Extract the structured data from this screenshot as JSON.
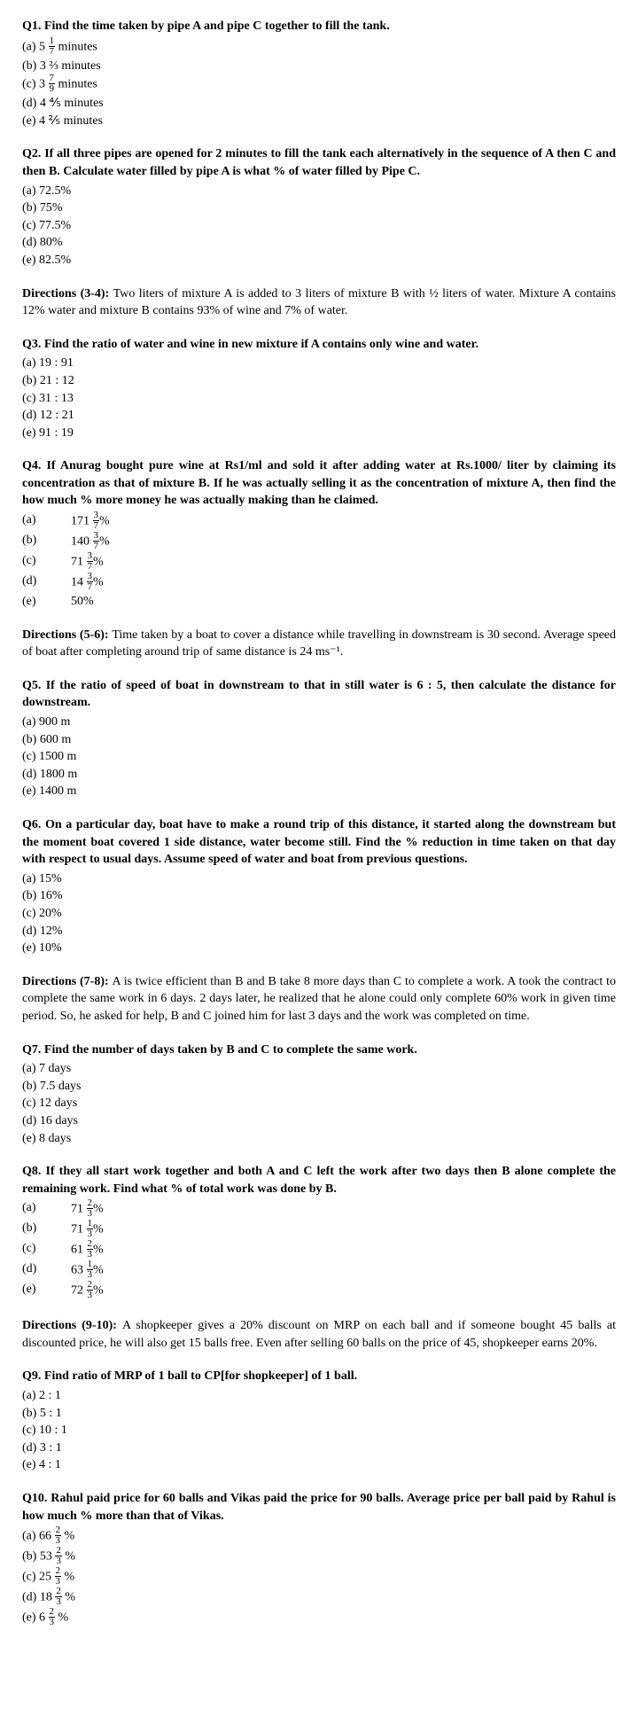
{
  "q1": {
    "text": "Q1.  Find the time taken by pipe A and pipe C together to fill the tank.",
    "a_pre": "(a) 5 ",
    "a_num": "1",
    "a_den": "7",
    "a_post": " minutes",
    "b": "(b) 3 ⅔ minutes",
    "c_pre": "(c) 3 ",
    "c_num": "7",
    "c_den": "9",
    "c_post": " minutes",
    "d": "(d) 4 ⅘ minutes",
    "e": "(e) 4 ⅖ minutes"
  },
  "q2": {
    "text": "Q2. If all three pipes are opened for 2 minutes to fill the tank each alternatively in the sequence of A then C and then B. Calculate water filled by pipe A is what % of water filled by Pipe C.",
    "a": "(a) 72.5%",
    "b": "(b) 75%",
    "c": "(c) 77.5%",
    "d": "(d) 80%",
    "e": "(e) 82.5%"
  },
  "d34": {
    "label": "Directions (3-4): ",
    "text": "Two liters of mixture A is added to 3 liters of mixture B with ½ liters of water. Mixture A contains 12% water and mixture B contains 93% of wine and 7% of water."
  },
  "q3": {
    "text": "Q3. Find the ratio of water and wine in new mixture if A contains only wine and water.",
    "a": "(a) 19 : 91",
    "b": "(b) 21 : 12",
    "c": "(c) 31 : 13",
    "d": "(d) 12 : 21",
    "e": "(e) 91 : 19"
  },
  "q4": {
    "text": "Q4. If Anurag bought pure wine at Rs1/ml and sold it after adding water at Rs.1000/ liter by claiming its concentration as that of mixture B. If he was actually selling it as the concentration of mixture A, then find the how much % more money he was actually making than he claimed.",
    "a_lbl": "(a)",
    "a_pre": "171 ",
    "a_num": "3",
    "a_den": "7",
    "a_post": "%",
    "b_lbl": "(b)",
    "b_pre": "140 ",
    "b_num": "3",
    "b_den": "7",
    "b_post": "%",
    "c_lbl": "(c)",
    "c_pre": "71 ",
    "c_num": "3",
    "c_den": "7",
    "c_post": "%",
    "d_lbl": "(d)",
    "d_pre": "14 ",
    "d_num": "3",
    "d_den": "7",
    "d_post": "%",
    "e_lbl": "(e)",
    "e_val": "50%"
  },
  "d56": {
    "label": "Directions (5-6): ",
    "text": "Time taken by a boat to cover a distance while travelling in downstream is 30 second. Average speed of boat after completing around trip of same distance is 24 ms⁻¹."
  },
  "q5": {
    "text": "Q5. If the ratio of speed of boat in downstream to that in still water is 6 : 5, then calculate the distance for downstream.",
    "a": "(a) 900 m",
    "b": "(b) 600 m",
    "c": "(c) 1500 m",
    "d": "(d) 1800 m",
    "e": "(e) 1400 m"
  },
  "q6": {
    "text": "Q6.  On a particular day, boat have to make a round trip of this distance, it started along the downstream but the moment boat covered 1 side distance, water become still. Find the % reduction in time taken on that day with respect to usual days. Assume speed of water and boat from previous questions.",
    "a": "(a) 15%",
    "b": "(b) 16%",
    "c": "(c) 20%",
    "d": "(d) 12%",
    "e": "(e) 10%"
  },
  "d78": {
    "label": "Directions (7-8): ",
    "text": "A is twice efficient than B and B take 8 more days than C to complete a work. A took the contract to complete the same work in 6 days. 2 days later, he realized that he alone could only complete 60% work in given time period. So, he asked for help, B and C joined him for last 3 days and the work was completed on time."
  },
  "q7": {
    "text": "Q7. Find the number of days taken by B and C to complete the same work.",
    "a": "(a) 7 days",
    "b": "(b) 7.5 days",
    "c": "(c) 12 days",
    "d": "(d) 16 days",
    "e": "(e) 8 days"
  },
  "q8": {
    "text": "Q8. If they all start work together and both A and C left the work after two days then B alone complete the remaining work. Find what % of total work was done by B.",
    "a_lbl": "(a)",
    "a_pre": "71 ",
    "a_num": "2",
    "a_den": "3",
    "a_post": "%",
    "b_lbl": "(b)",
    "b_pre": "71 ",
    "b_num": "1",
    "b_den": "3",
    "b_post": "%",
    "c_lbl": "(c)",
    "c_pre": "61 ",
    "c_num": "2",
    "c_den": "3",
    "c_post": "%",
    "d_lbl": "(d)",
    "d_pre": "63 ",
    "d_num": "1",
    "d_den": "3",
    "d_post": "%",
    "e_lbl": "(e)",
    "e_pre": "72 ",
    "e_num": "2",
    "e_den": "3",
    "e_post": "%"
  },
  "d910": {
    "label": "Directions (9-10): ",
    "text": "A shopkeeper gives a 20% discount on MRP on each ball and if someone bought 45 balls at discounted price, he will also get 15 balls free. Even after selling 60 balls on the price of 45, shopkeeper earns 20%."
  },
  "q9": {
    "text": "Q9. Find ratio of MRP of 1 ball to CP[for shopkeeper] of 1 ball.",
    "a": "(a) 2 : 1",
    "b": "(b) 5 : 1",
    "c": "(c) 10 : 1",
    "d": "(d) 3 : 1",
    "e": "(e) 4 : 1"
  },
  "q10": {
    "text": "Q10. Rahul paid price for 60 balls and Vikas paid the price for 90 balls. Average price per ball paid by Rahul is how much % more than that of Vikas.",
    "a_pre": "(a) 66 ",
    "a_num": "2",
    "a_den": "3",
    "a_post": " %",
    "b_pre": "(b) 53 ",
    "b_num": "2",
    "b_den": "3",
    "b_post": " %",
    "c_pre": "(c) 25 ",
    "c_num": "2",
    "c_den": "3",
    "c_post": " %",
    "d_pre": "(d) 18 ",
    "d_num": "2",
    "d_den": "3",
    "d_post": " %",
    "e_pre": "(e) 6 ",
    "e_num": "2",
    "e_den": "3",
    "e_post": " %"
  }
}
